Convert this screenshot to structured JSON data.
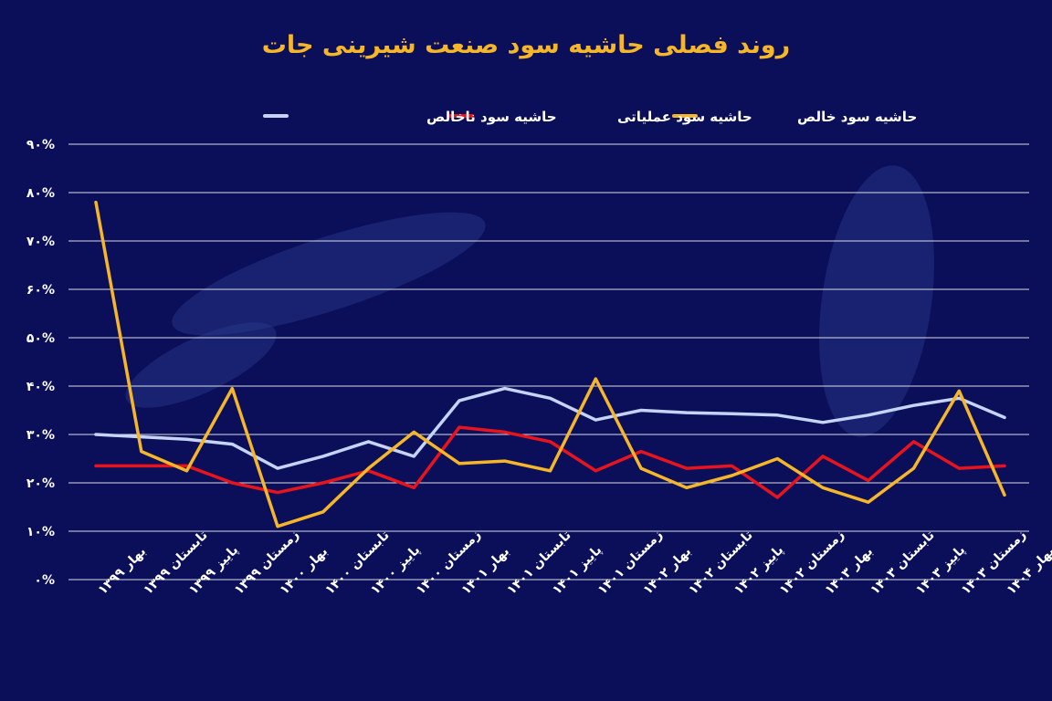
{
  "chart_data": {
    "type": "line",
    "title": "روند فصلی حاشیه سود صنعت شیرینی جات",
    "xlabel": "",
    "ylabel": "",
    "ylim": [
      0,
      90
    ],
    "grid": true,
    "legend_position": "top-center",
    "y_ticks": [
      "۰%",
      "۱۰%",
      "۲۰%",
      "۳۰%",
      "۴۰%",
      "۵۰%",
      "۶۰%",
      "۷۰%",
      "۸۰%",
      "۹۰%"
    ],
    "categories": [
      "بهار ۱۳۹۹",
      "تابستان ۱۳۹۹",
      "پاییز ۱۳۹۹",
      "زمستان ۱۳۹۹",
      "بهار ۱۴۰۰",
      "تابستان ۱۴۰۰",
      "پاییز ۱۴۰۰",
      "زمستان ۱۴۰۰",
      "بهار ۱۴۰۱",
      "تابستان ۱۴۰۱",
      "پاییز ۱۴۰۱",
      "زمستان ۱۴۰۱",
      "بهار ۱۴۰۲",
      "تابستان ۱۴۰۲",
      "پاییز ۱۴۰۲",
      "زمستان ۱۴۰۲",
      "بهار ۱۴۰۳",
      "تابستان ۱۴۰۳",
      "پاییز ۱۴۰۳",
      "زمستان ۱۴۰۳",
      "بهار ۱۴۰۴"
    ],
    "series": [
      {
        "name": "حاشیه سود ناخالص",
        "color": "#c5d3f5",
        "values": [
          30,
          29.5,
          29,
          28,
          23,
          25.5,
          28.5,
          25.5,
          37,
          39.5,
          37.5,
          33,
          35,
          34.5,
          34.3,
          34,
          32.5,
          34,
          36,
          37.5,
          33.5
        ]
      },
      {
        "name": "حاشیه سود عملیاتی",
        "color": "#e8141d",
        "values": [
          23.5,
          23.5,
          23.5,
          20,
          18,
          20,
          22.5,
          19,
          31.5,
          30.5,
          28.5,
          22.5,
          26.5,
          23,
          23.5,
          17,
          25.5,
          20.5,
          28.5,
          23,
          23.5
        ]
      },
      {
        "name": "حاشیه سود خالص",
        "color": "#f5b62a",
        "values": [
          78,
          26.5,
          22.5,
          39.5,
          11,
          14,
          23,
          30.5,
          24,
          24.5,
          22.5,
          41.5,
          23,
          19,
          21.5,
          25,
          19,
          16,
          23,
          39,
          17.5
        ]
      }
    ]
  }
}
